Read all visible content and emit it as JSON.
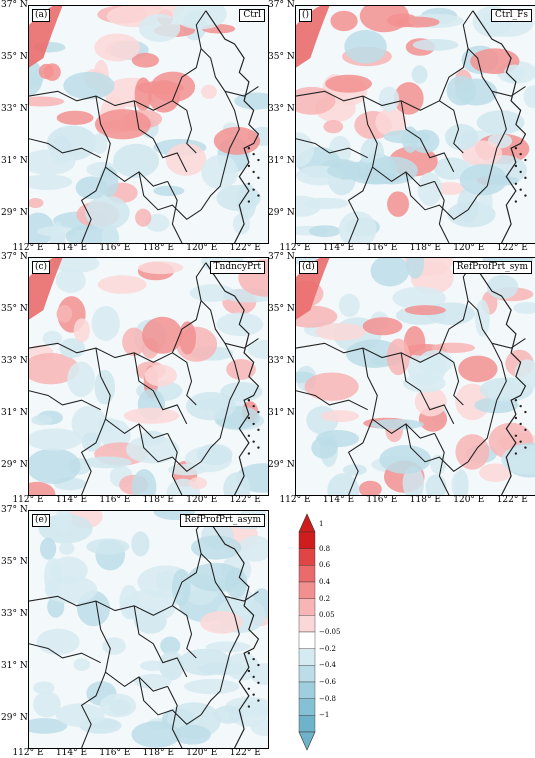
{
  "panels": [
    {
      "tag": "(a)",
      "title": "Ctrl",
      "style": "warm"
    },
    {
      "tag": "()",
      "title": "Ctrl_Fs",
      "style": "warm_light"
    },
    {
      "tag": "(c)",
      "title": "TndncyPrt",
      "style": "warm"
    },
    {
      "tag": "(d)",
      "title": "RefProfPrt_sym",
      "style": "mixed"
    },
    {
      "tag": "(e)",
      "title": "RefProfPrt_asym",
      "style": "cool"
    }
  ],
  "axes": {
    "lat_labels": [
      "37° N",
      "35° N",
      "33° N",
      "31° N",
      "29° N"
    ],
    "lon_labels": [
      "112° E",
      "114° E",
      "116° E",
      "118° E",
      "120° E",
      "122° E"
    ]
  },
  "colorbar": {
    "labels": [
      "1",
      "0.8",
      "0.6",
      "0.4",
      "0.2",
      "0.05",
      "−0.05",
      "−0.2",
      "−0.4",
      "−0.6",
      "−0.8",
      "−1"
    ],
    "colors": [
      "#cf1c1c",
      "#e04545",
      "#ea6b6b",
      "#f29090",
      "#f7b5b5",
      "#fbd8d8",
      "#ffffff",
      "#d6ebf1",
      "#bcdde8",
      "#9fcfdf",
      "#85c1d5",
      "#6fb3ca"
    ]
  }
}
